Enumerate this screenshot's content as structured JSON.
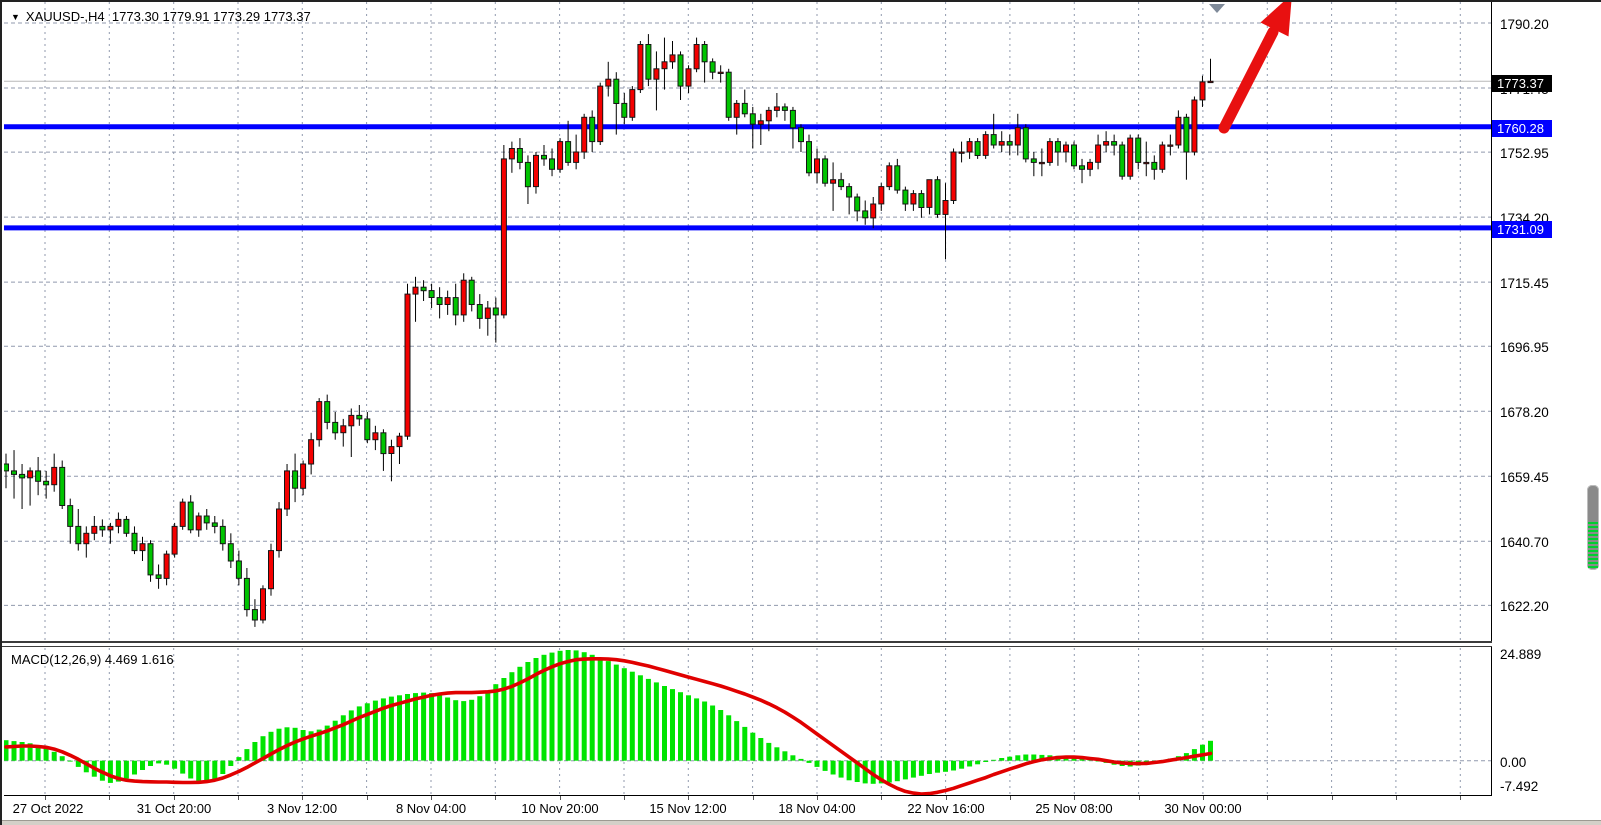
{
  "title": {
    "symbol_block": "XAUUSD-,H4",
    "ohlc_text": "1773.30 1779.91 1773.29 1773.37",
    "dropdown_icon": "▼"
  },
  "colors": {
    "bull": "#f40000",
    "bear": "#00c400",
    "wick": "#000000",
    "body_border": "#151515",
    "grid": "#9099ad",
    "current_price_line": "#b8b8b8",
    "sr_line": "#0000ff",
    "macd_hist": "#00e400",
    "macd_signal": "#e00000",
    "arrow": "#e81010",
    "tag_current_bg": "#000000",
    "tag_sr_bg": "#0000ff",
    "end_marker": "#7f8a99"
  },
  "chart_data": {
    "type": "candlestick",
    "symbol": "XAUUSD-",
    "timeframe": "H4",
    "last_bar": {
      "open": 1773.3,
      "high": 1779.91,
      "low": 1773.29,
      "close": 1773.37
    },
    "current_price": "1773.37",
    "price_axis_labels": [
      "1790.20",
      "1771.45",
      "1752.95",
      "1734.20",
      "1715.45",
      "1696.95",
      "1678.20",
      "1659.45",
      "1640.70",
      "1622.20"
    ],
    "time_axis_labels": [
      "27 Oct 2022",
      "31 Oct 20:00",
      "3 Nov 12:00",
      "8 Nov 04:00",
      "10 Nov 20:00",
      "15 Nov 12:00",
      "18 Nov 04:00",
      "22 Nov 16:00",
      "25 Nov 08:00",
      "30 Nov 00:00"
    ],
    "support_resistance_lines": [
      {
        "label": "1760.28",
        "price": 1760.28
      },
      {
        "label": "1731.09",
        "price": 1731.09
      }
    ],
    "annotations": {
      "trend_arrow": {
        "direction": "up-right",
        "meaning": "bullish-breakout"
      }
    },
    "candles": [
      [
        1663,
        1666,
        1656,
        1661
      ],
      [
        1661,
        1667,
        1653,
        1660
      ],
      [
        1660,
        1663,
        1650,
        1659
      ],
      [
        1659,
        1662,
        1651,
        1661
      ],
      [
        1661,
        1665,
        1654,
        1658
      ],
      [
        1658,
        1661,
        1653,
        1657
      ],
      [
        1657,
        1666,
        1655,
        1662
      ],
      [
        1662,
        1664,
        1650,
        1651
      ],
      [
        1651,
        1653,
        1640,
        1645
      ],
      [
        1645,
        1650,
        1638,
        1640
      ],
      [
        1640,
        1645,
        1636,
        1643
      ],
      [
        1643,
        1648,
        1641,
        1645
      ],
      [
        1645,
        1647,
        1642,
        1644
      ],
      [
        1644,
        1646,
        1640,
        1645
      ],
      [
        1645,
        1649,
        1643,
        1647
      ],
      [
        1647,
        1648,
        1642,
        1643
      ],
      [
        1643,
        1645,
        1637,
        1638
      ],
      [
        1638,
        1642,
        1635,
        1640
      ],
      [
        1640,
        1641,
        1629,
        1631
      ],
      [
        1631,
        1634,
        1627,
        1630
      ],
      [
        1630,
        1638,
        1628,
        1637
      ],
      [
        1637,
        1646,
        1636,
        1645
      ],
      [
        1645,
        1653,
        1644,
        1652
      ],
      [
        1652,
        1654,
        1643,
        1644
      ],
      [
        1644,
        1649,
        1642,
        1648
      ],
      [
        1648,
        1650,
        1644,
        1646
      ],
      [
        1646,
        1648,
        1643,
        1645
      ],
      [
        1645,
        1647,
        1638,
        1640
      ],
      [
        1640,
        1643,
        1633,
        1635
      ],
      [
        1635,
        1638,
        1628,
        1630
      ],
      [
        1630,
        1633,
        1619,
        1621
      ],
      [
        1621,
        1624,
        1616,
        1618
      ],
      [
        1618,
        1628,
        1617,
        1627
      ],
      [
        1627,
        1640,
        1625,
        1638
      ],
      [
        1638,
        1652,
        1636,
        1650
      ],
      [
        1650,
        1663,
        1648,
        1661
      ],
      [
        1661,
        1666,
        1652,
        1656
      ],
      [
        1656,
        1664,
        1654,
        1663
      ],
      [
        1663,
        1672,
        1660,
        1670
      ],
      [
        1670,
        1682,
        1668,
        1681
      ],
      [
        1681,
        1683,
        1673,
        1675
      ],
      [
        1675,
        1678,
        1670,
        1672
      ],
      [
        1672,
        1676,
        1668,
        1674
      ],
      [
        1674,
        1679,
        1665,
        1677
      ],
      [
        1677,
        1680,
        1674,
        1676
      ],
      [
        1676,
        1678,
        1669,
        1670
      ],
      [
        1670,
        1674,
        1667,
        1672
      ],
      [
        1672,
        1673,
        1661,
        1666
      ],
      [
        1666,
        1670,
        1658,
        1668
      ],
      [
        1668,
        1672,
        1663,
        1671
      ],
      [
        1671,
        1715,
        1670,
        1712
      ],
      [
        1712,
        1717,
        1704,
        1714
      ],
      [
        1714,
        1716,
        1710,
        1713
      ],
      [
        1713,
        1715,
        1708,
        1711
      ],
      [
        1711,
        1714,
        1705,
        1709
      ],
      [
        1709,
        1713,
        1706,
        1711
      ],
      [
        1711,
        1715,
        1703,
        1706
      ],
      [
        1706,
        1718,
        1704,
        1716
      ],
      [
        1716,
        1717,
        1707,
        1709
      ],
      [
        1709,
        1712,
        1702,
        1705
      ],
      [
        1705,
        1710,
        1700,
        1708
      ],
      [
        1708,
        1711,
        1698,
        1706
      ],
      [
        1706,
        1755,
        1705,
        1751
      ],
      [
        1751,
        1756,
        1747,
        1754
      ],
      [
        1754,
        1757,
        1748,
        1750
      ],
      [
        1750,
        1752,
        1738,
        1743
      ],
      [
        1743,
        1753,
        1741,
        1752
      ],
      [
        1752,
        1755,
        1749,
        1751
      ],
      [
        1751,
        1754,
        1746,
        1748
      ],
      [
        1748,
        1757,
        1747,
        1756
      ],
      [
        1756,
        1762,
        1749,
        1750
      ],
      [
        1750,
        1758,
        1748,
        1753
      ],
      [
        1753,
        1764,
        1751,
        1763
      ],
      [
        1763,
        1765,
        1753,
        1756
      ],
      [
        1756,
        1773,
        1755,
        1772
      ],
      [
        1772,
        1779,
        1769,
        1774
      ],
      [
        1774,
        1776,
        1758,
        1767
      ],
      [
        1767,
        1770,
        1761,
        1763
      ],
      [
        1763,
        1772,
        1762,
        1771
      ],
      [
        1771,
        1785,
        1770,
        1784
      ],
      [
        1784,
        1787,
        1772,
        1774
      ],
      [
        1774,
        1782,
        1765,
        1777
      ],
      [
        1777,
        1786,
        1771,
        1779
      ],
      [
        1779,
        1785,
        1777,
        1781
      ],
      [
        1781,
        1782,
        1768,
        1772
      ],
      [
        1772,
        1778,
        1770,
        1777
      ],
      [
        1777,
        1786,
        1776,
        1784
      ],
      [
        1784,
        1785,
        1773,
        1779
      ],
      [
        1779,
        1780,
        1774,
        1776
      ],
      [
        1776,
        1778,
        1773,
        1776
      ],
      [
        1776,
        1777,
        1762,
        1763
      ],
      [
        1763,
        1768,
        1758,
        1767
      ],
      [
        1767,
        1771,
        1763,
        1764
      ],
      [
        1764,
        1766,
        1754,
        1761
      ],
      [
        1761,
        1764,
        1755,
        1762
      ],
      [
        1762,
        1766,
        1759,
        1765
      ],
      [
        1765,
        1770,
        1763,
        1766
      ],
      [
        1766,
        1767,
        1762,
        1765
      ],
      [
        1765,
        1766,
        1754,
        1760
      ],
      [
        1760,
        1761,
        1753,
        1756
      ],
      [
        1756,
        1758,
        1746,
        1747
      ],
      [
        1747,
        1754,
        1744,
        1751
      ],
      [
        1751,
        1752,
        1743,
        1744
      ],
      [
        1744,
        1750,
        1736,
        1745
      ],
      [
        1745,
        1747,
        1742,
        1743
      ],
      [
        1743,
        1744,
        1735,
        1740
      ],
      [
        1740,
        1741,
        1733,
        1736
      ],
      [
        1736,
        1739,
        1732,
        1734
      ],
      [
        1734,
        1740,
        1731,
        1738
      ],
      [
        1738,
        1744,
        1736,
        1743
      ],
      [
        1743,
        1750,
        1742,
        1749
      ],
      [
        1749,
        1751,
        1741,
        1742
      ],
      [
        1742,
        1743,
        1736,
        1738
      ],
      [
        1738,
        1742,
        1736,
        1741
      ],
      [
        1741,
        1742,
        1734,
        1737
      ],
      [
        1737,
        1745,
        1735,
        1745
      ],
      [
        1745,
        1746,
        1734,
        1735
      ],
      [
        1735,
        1744,
        1722,
        1739
      ],
      [
        1739,
        1754,
        1738,
        1753
      ],
      [
        1753,
        1756,
        1750,
        1753
      ],
      [
        1753,
        1757,
        1751,
        1756
      ],
      [
        1756,
        1757,
        1751,
        1752
      ],
      [
        1752,
        1759,
        1751,
        1758
      ],
      [
        1758,
        1764,
        1754,
        1755
      ],
      [
        1755,
        1759,
        1753,
        1756
      ],
      [
        1756,
        1758,
        1752,
        1755
      ],
      [
        1755,
        1764,
        1752,
        1760
      ],
      [
        1760,
        1761,
        1750,
        1751
      ],
      [
        1751,
        1753,
        1746,
        1750
      ],
      [
        1750,
        1754,
        1746,
        1750
      ],
      [
        1750,
        1757,
        1749,
        1756
      ],
      [
        1756,
        1757,
        1749,
        1753
      ],
      [
        1753,
        1756,
        1750,
        1755
      ],
      [
        1755,
        1756,
        1748,
        1749
      ],
      [
        1749,
        1751,
        1744,
        1748
      ],
      [
        1748,
        1751,
        1746,
        1750
      ],
      [
        1750,
        1758,
        1748,
        1755
      ],
      [
        1755,
        1759,
        1753,
        1756
      ],
      [
        1756,
        1758,
        1752,
        1755
      ],
      [
        1755,
        1756,
        1745,
        1746
      ],
      [
        1746,
        1758,
        1745,
        1757
      ],
      [
        1757,
        1758,
        1748,
        1750
      ],
      [
        1750,
        1756,
        1746,
        1750
      ],
      [
        1750,
        1752,
        1745,
        1748
      ],
      [
        1748,
        1756,
        1747,
        1755
      ],
      [
        1755,
        1758,
        1752,
        1755
      ],
      [
        1755,
        1765,
        1754,
        1763
      ],
      [
        1763,
        1764,
        1745,
        1753
      ],
      [
        1753,
        1769,
        1752,
        1768
      ],
      [
        1768,
        1775,
        1766,
        1773.2
      ],
      [
        1773.3,
        1779.91,
        1773.29,
        1773.37
      ]
    ],
    "macd": {
      "label": "MACD(12,26,9) 4.469 1.616",
      "params": "12,26,9",
      "macd_value": "4.469",
      "signal_value": "1.616",
      "axis_labels": [
        "24.889",
        "0.00",
        "-7.492"
      ],
      "max": 24.889,
      "min": -7.492,
      "histogram": [
        4.6,
        4.4,
        4.2,
        3.9,
        3.4,
        2.8,
        2.0,
        1.0,
        -0.2,
        -1.4,
        -2.6,
        -3.6,
        -4.5,
        -5.0,
        -4.7,
        -4.0,
        -3.1,
        -2.1,
        -1.2,
        -0.6,
        -0.9,
        -1.8,
        -2.9,
        -4.0,
        -4.7,
        -4.9,
        -4.3,
        -3.0,
        -1.2,
        0.8,
        2.6,
        4.2,
        5.5,
        6.5,
        7.2,
        7.5,
        7.4,
        6.9,
        6.6,
        7.0,
        7.9,
        9.0,
        10.2,
        11.3,
        12.2,
        12.9,
        13.5,
        14.0,
        14.4,
        14.7,
        15.0,
        15.2,
        15.3,
        15.2,
        14.8,
        14.2,
        13.6,
        13.4,
        13.7,
        14.5,
        15.8,
        17.2,
        18.6,
        19.9,
        21.1,
        22.2,
        23.1,
        23.8,
        24.3,
        24.7,
        24.889,
        24.8,
        24.4,
        23.8,
        23.1,
        22.4,
        21.6,
        20.8,
        20.0,
        19.2,
        18.4,
        17.6,
        16.8,
        16.1,
        15.4,
        14.7,
        14.0,
        13.3,
        12.4,
        11.4,
        10.2,
        8.9,
        7.6,
        6.3,
        5.1,
        4.0,
        3.0,
        2.1,
        1.2,
        0.4,
        -0.5,
        -1.4,
        -2.3,
        -3.1,
        -3.8,
        -4.4,
        -4.8,
        -5.1,
        -5.2,
        -5.1,
        -4.9,
        -4.6,
        -4.2,
        -3.8,
        -3.4,
        -3.0,
        -2.7,
        -2.5,
        -2.2,
        -1.8,
        -1.3,
        -0.8,
        -0.3,
        0.2,
        0.6,
        0.9,
        1.2,
        1.4,
        1.4,
        1.3,
        1.2,
        1.1,
        1.0,
        0.8,
        0.6,
        0.3,
        -0.1,
        -0.5,
        -0.9,
        -1.2,
        -1.3,
        -1.1,
        -0.8,
        -0.4,
        0.1,
        0.5,
        1.0,
        1.7,
        2.6,
        3.6,
        4.469
      ],
      "signal": [
        3.1,
        3.2,
        3.3,
        3.3,
        3.2,
        3.0,
        2.6,
        2.0,
        1.2,
        0.3,
        -0.7,
        -1.7,
        -2.6,
        -3.4,
        -4.0,
        -4.4,
        -4.6,
        -4.7,
        -4.75,
        -4.8,
        -4.8,
        -4.85,
        -4.9,
        -4.9,
        -4.85,
        -4.7,
        -4.4,
        -3.9,
        -3.2,
        -2.4,
        -1.5,
        -0.5,
        0.5,
        1.5,
        2.5,
        3.4,
        4.2,
        4.9,
        5.5,
        6.1,
        6.7,
        7.4,
        8.1,
        8.9,
        9.7,
        10.4,
        11.1,
        11.8,
        12.4,
        12.9,
        13.4,
        13.9,
        14.3,
        14.7,
        15.0,
        15.2,
        15.3,
        15.3,
        15.3,
        15.4,
        15.5,
        15.7,
        16.1,
        16.7,
        17.5,
        18.4,
        19.4,
        20.3,
        21.1,
        21.8,
        22.3,
        22.7,
        22.85,
        22.9,
        22.9,
        22.85,
        22.7,
        22.45,
        22.1,
        21.7,
        21.3,
        20.8,
        20.3,
        19.8,
        19.3,
        18.8,
        18.3,
        17.8,
        17.3,
        16.8,
        16.2,
        15.6,
        15.0,
        14.3,
        13.6,
        12.8,
        11.9,
        10.9,
        9.8,
        8.6,
        7.3,
        6.0,
        4.7,
        3.4,
        2.1,
        0.8,
        -0.5,
        -1.8,
        -3.1,
        -4.3,
        -5.3,
        -6.2,
        -6.9,
        -7.3,
        -7.492,
        -7.4,
        -7.1,
        -6.7,
        -6.2,
        -5.6,
        -5.0,
        -4.4,
        -3.8,
        -3.1,
        -2.5,
        -1.9,
        -1.3,
        -0.7,
        -0.2,
        0.2,
        0.5,
        0.7,
        0.8,
        0.8,
        0.7,
        0.5,
        0.3,
        0.0,
        -0.3,
        -0.5,
        -0.6,
        -0.65,
        -0.6,
        -0.4,
        -0.2,
        0.1,
        0.4,
        0.7,
        1.0,
        1.3,
        1.616
      ]
    }
  }
}
